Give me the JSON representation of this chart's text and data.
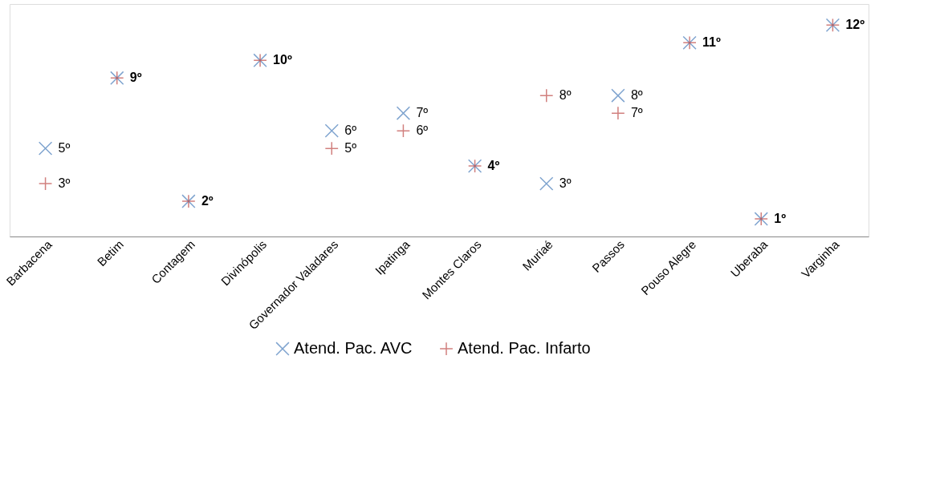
{
  "chart_data": {
    "type": "scatter",
    "categories": [
      "Barbacena",
      "Betim",
      "Contagem",
      "Divinópolis",
      "Governador Valadares",
      "Ipatinga",
      "Montes Claros",
      "Muriaé",
      "Passos",
      "Pouso Alegre",
      "Uberaba",
      "Varginha"
    ],
    "series": [
      {
        "name": "Atend. Pac. AVC",
        "color": "#4a7ebb",
        "marker": "x",
        "values": [
          5,
          9,
          2,
          10,
          6,
          7,
          4,
          3,
          8,
          11,
          1,
          12
        ],
        "value_labels": [
          "5º",
          null,
          null,
          null,
          "6º",
          "7º",
          null,
          "3º",
          "8º",
          null,
          null,
          null
        ]
      },
      {
        "name": "Atend. Pac. Infarto",
        "color": "#be4b48",
        "marker": "plus",
        "values": [
          3,
          9,
          2,
          10,
          5,
          6,
          4,
          8,
          7,
          11,
          1,
          12
        ],
        "value_labels": [
          "3º",
          "9º",
          "2º",
          "10º",
          "5º",
          "6º",
          "4º",
          "8º",
          "7º",
          "11º",
          "1º",
          "12º"
        ]
      }
    ],
    "legend": "bottom",
    "grid": false
  }
}
